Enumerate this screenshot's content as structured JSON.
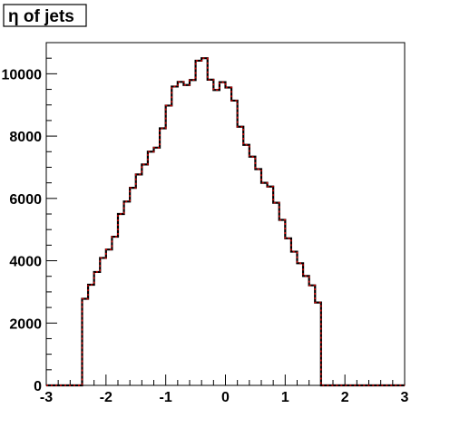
{
  "chart_data": {
    "type": "histogram-step",
    "title": "η of jets",
    "xlim": [
      -3,
      3
    ],
    "ylim": [
      0,
      11000
    ],
    "xticks": [
      -3,
      -2,
      -1,
      0,
      1,
      2,
      3
    ],
    "yticks": [
      0,
      2000,
      4000,
      6000,
      8000,
      10000
    ],
    "xtick_labels": [
      "-3",
      "-2",
      "-1",
      "0",
      "1",
      "2",
      "3"
    ],
    "ytick_labels": [
      "0",
      "2000",
      "4000",
      "6000",
      "8000",
      "10000"
    ],
    "grid": false,
    "series": [
      {
        "line_color": "#000000",
        "overlay_color": "#cc0000",
        "bin_edges": [
          -3.0,
          -2.9,
          -2.8,
          -2.7,
          -2.6,
          -2.5,
          -2.4,
          -2.3,
          -2.2,
          -2.1,
          -2.0,
          -1.9,
          -1.8,
          -1.7,
          -1.6,
          -1.5,
          -1.4,
          -1.3,
          -1.2,
          -1.1,
          -1.0,
          -0.9,
          -0.8,
          -0.7,
          -0.6,
          -0.5,
          -0.4,
          -0.3,
          -0.2,
          -0.1,
          0.0,
          0.1,
          0.2,
          0.3,
          0.4,
          0.5,
          0.6,
          0.7,
          0.8,
          0.9,
          1.0,
          1.1,
          1.2,
          1.3,
          1.4,
          1.5,
          1.6,
          1.7,
          1.8,
          1.9,
          2.0,
          2.1,
          2.2,
          2.3,
          2.4,
          2.5,
          2.6,
          2.7,
          2.8,
          2.9,
          3.0
        ],
        "counts": [
          0,
          0,
          0,
          0,
          0,
          0,
          2780,
          3230,
          3640,
          4090,
          4360,
          4770,
          5500,
          5900,
          6340,
          6770,
          7090,
          7500,
          7630,
          8250,
          8980,
          9590,
          9740,
          9640,
          9800,
          10420,
          10500,
          9810,
          9480,
          9730,
          9560,
          9140,
          8300,
          7720,
          7340,
          6940,
          6500,
          6380,
          5860,
          5310,
          4720,
          4290,
          3920,
          3510,
          3210,
          2660,
          0,
          0,
          0,
          0,
          0,
          0,
          0,
          0,
          0,
          0,
          0,
          0,
          0,
          0
        ]
      }
    ]
  }
}
